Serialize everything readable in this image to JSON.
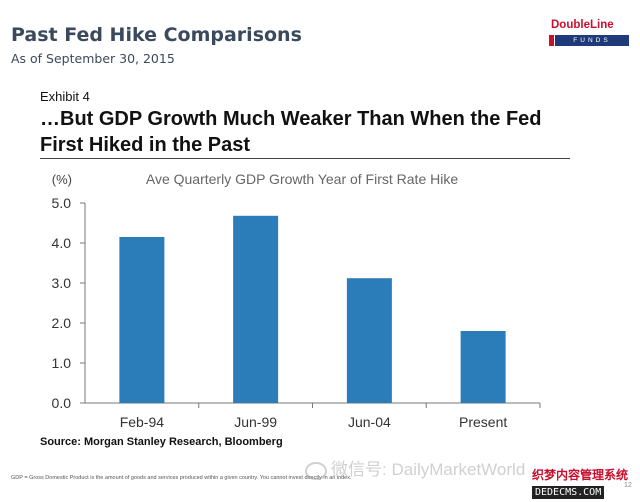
{
  "slide": {
    "title": "Past Fed Hike Comparisons",
    "subtitle": "As of September 30, 2015",
    "logo_top": "DoubleLine",
    "logo_bottom": "FUNDS",
    "exhibit_label": "Exhibit 4",
    "exhibit_title": "…But GDP Growth Much Weaker Than When the Fed First Hiked in the Past",
    "source": "Source: Morgan Stanley Research, Bloomberg",
    "footnote": "GDP = Gross Domestic Product is the amount of goods and services produced within a given country. You cannot invest directly in an index.",
    "page_number": "12",
    "watermark": "微信号: DailyMarketWorld",
    "site_mark_line1": "织梦内容管理系统",
    "site_mark_line2": "DEDECMS.COM"
  },
  "chart_data": {
    "type": "bar",
    "title": "Ave Quarterly GDP Growth Year of First Rate Hike",
    "ylabel": "(%)",
    "categories": [
      "Feb-94",
      "Jun-99",
      "Jun-04",
      "Present"
    ],
    "values": [
      4.15,
      4.68,
      3.12,
      1.8
    ],
    "ylim": [
      0,
      5
    ],
    "yticks": [
      "0.0",
      "1.0",
      "2.0",
      "3.0",
      "4.0",
      "5.0"
    ],
    "bar_color": "#2a7db8",
    "grid": false
  }
}
